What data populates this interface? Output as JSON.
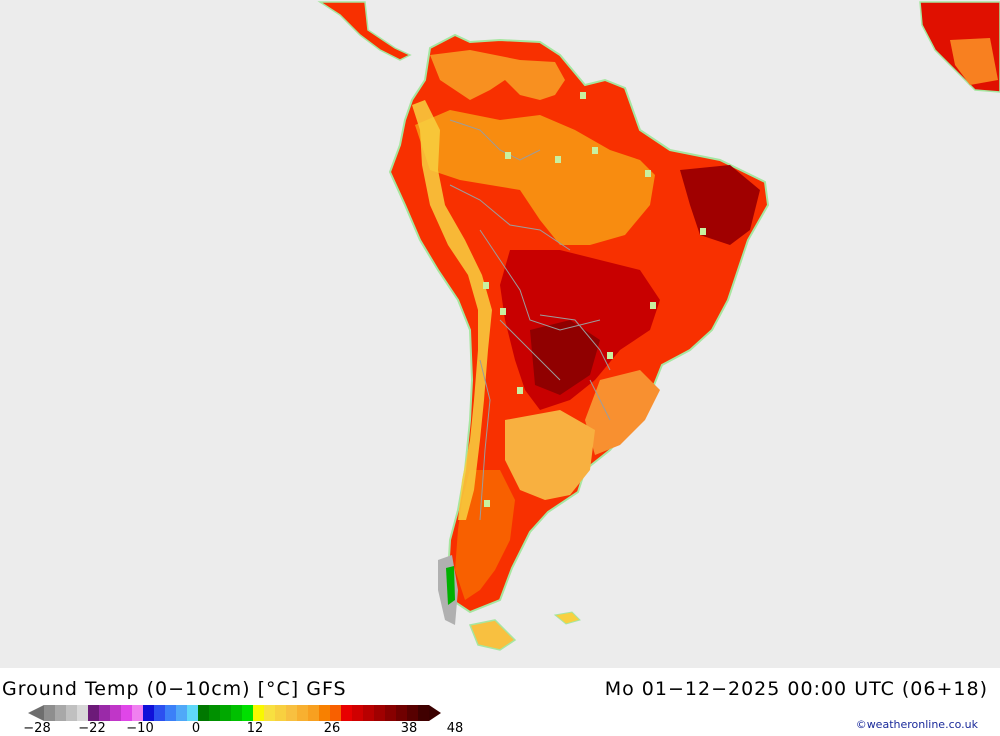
{
  "map": {
    "title": "Ground Temp (0−10cm) [°C] GFS",
    "datetime": "Mo 01−12−2025 00:00 UTC (06+18)",
    "credit": "©weatheronline.co.uk",
    "background_color": "#ececec",
    "land_outline_color": "#a6e6a0",
    "border_color": "#9c9c9c"
  },
  "legend": {
    "tick_labels": [
      "−28",
      "−22",
      "−10",
      "0",
      "12",
      "26",
      "38",
      "48"
    ],
    "colors": [
      "#8e8e8e",
      "#a8a8a8",
      "#c0c0c0",
      "#d8d8d8",
      "#6c1a78",
      "#9a2aa8",
      "#c036c8",
      "#e046e8",
      "#f080f0",
      "#1010d8",
      "#2c50f0",
      "#3c80f8",
      "#50a8f8",
      "#60d8f8",
      "#007800",
      "#009000",
      "#00a800",
      "#00c000",
      "#00e000",
      "#f8f800",
      "#f8e040",
      "#f8d040",
      "#f8c040",
      "#f8b030",
      "#f8a020",
      "#f88000",
      "#f86000",
      "#e80000",
      "#d00000",
      "#b80000",
      "#a00000",
      "#880000",
      "#700000",
      "#580000",
      "#400000"
    ]
  }
}
